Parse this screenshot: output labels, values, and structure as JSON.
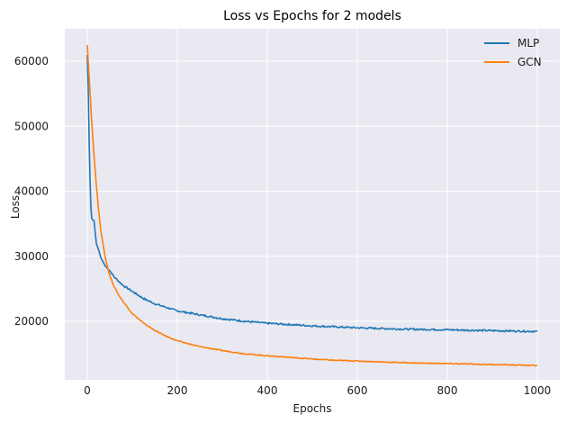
{
  "chart_data": {
    "type": "line",
    "title": "Loss vs Epochs for 2 models",
    "xlabel": "Epochs",
    "ylabel": "Loss",
    "xlim": [
      -50,
      1050
    ],
    "ylim": [
      11000,
      65000
    ],
    "xticks": [
      0,
      200,
      400,
      600,
      800,
      1000
    ],
    "yticks": [
      20000,
      30000,
      40000,
      50000,
      60000
    ],
    "grid": true,
    "legend": "top-right",
    "background": "#e9e9f1",
    "series": [
      {
        "name": "MLP",
        "color": "#1f77b4",
        "x": [
          0,
          2,
          4,
          6,
          8,
          10,
          12,
          15,
          20,
          25,
          30,
          40,
          50,
          60,
          80,
          100,
          125,
          150,
          200,
          250,
          300,
          350,
          400,
          450,
          500,
          550,
          600,
          650,
          700,
          750,
          800,
          850,
          900,
          950,
          1000
        ],
        "values": [
          61000,
          56000,
          48000,
          42000,
          37500,
          35800,
          35600,
          35500,
          32000,
          31000,
          29800,
          28500,
          27800,
          26800,
          25500,
          24600,
          23500,
          22700,
          21600,
          21000,
          20400,
          20000,
          19700,
          19500,
          19300,
          19150,
          19000,
          18900,
          18800,
          18750,
          18700,
          18620,
          18560,
          18500,
          18450
        ]
      },
      {
        "name": "GCN",
        "color": "#ff7f0e",
        "x": [
          0,
          5,
          10,
          15,
          20,
          25,
          30,
          40,
          50,
          60,
          70,
          80,
          100,
          125,
          150,
          175,
          200,
          250,
          300,
          350,
          400,
          450,
          500,
          550,
          600,
          650,
          700,
          750,
          800,
          850,
          900,
          950,
          1000
        ],
        "values": [
          62500,
          56500,
          50500,
          45500,
          41000,
          37200,
          34000,
          29800,
          27000,
          25300,
          24000,
          23000,
          21200,
          19700,
          18600,
          17700,
          17000,
          16100,
          15500,
          15000,
          14700,
          14450,
          14200,
          14000,
          13900,
          13750,
          13650,
          13550,
          13500,
          13420,
          13350,
          13280,
          13200
        ]
      }
    ]
  }
}
